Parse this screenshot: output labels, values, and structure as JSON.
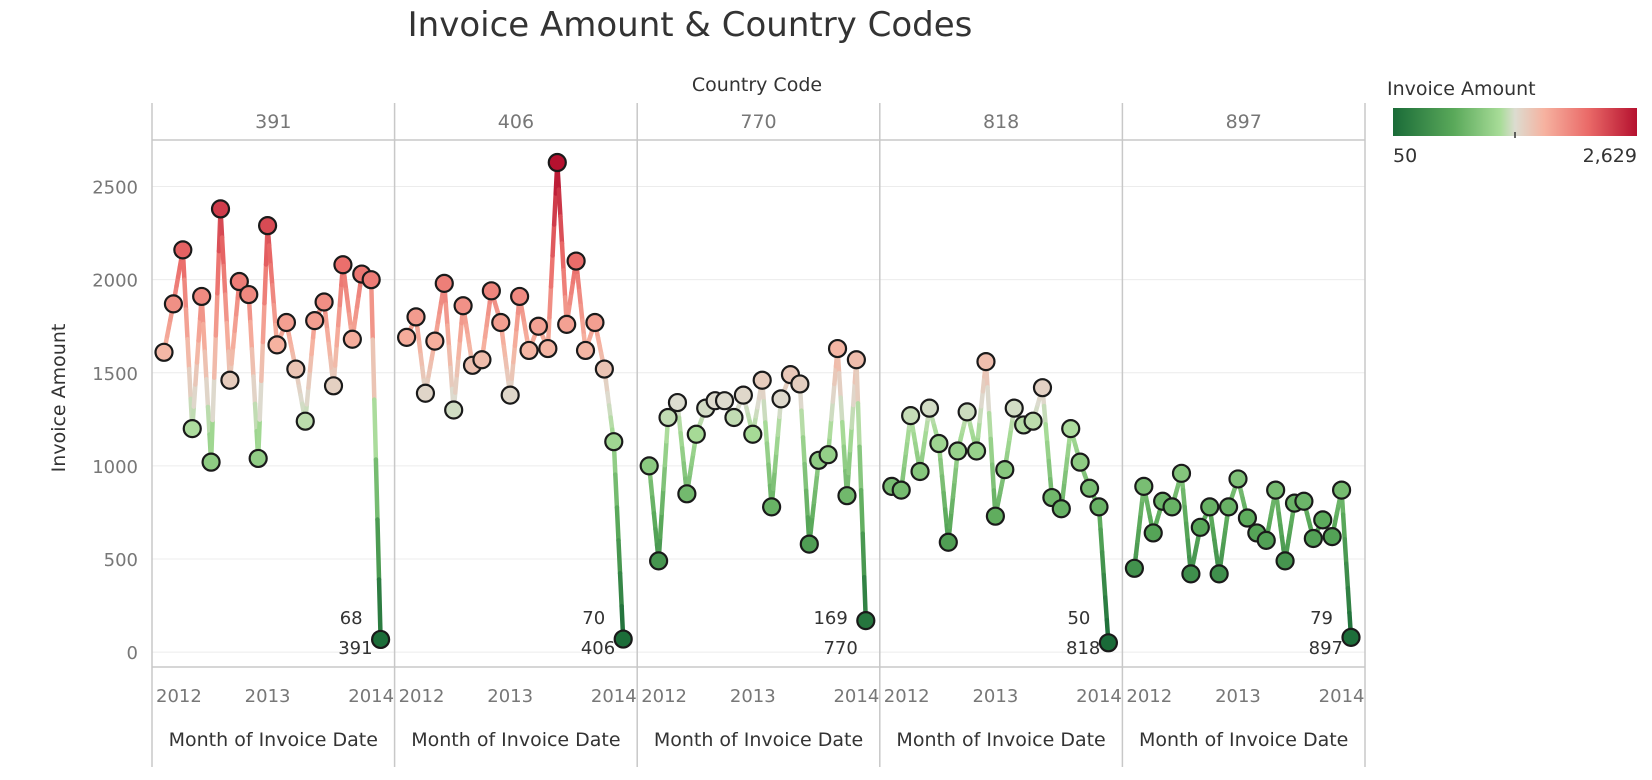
{
  "chart_data": {
    "type": "line",
    "title": "Invoice Amount & Country Codes",
    "facet_header": "Country Code",
    "ylabel": "Invoice Amount",
    "xlabel": "Month of Invoice Date",
    "ylim": [
      -80,
      2750
    ],
    "y_ticks": [
      0,
      500,
      1000,
      1500,
      2000,
      2500
    ],
    "x_ticks": [
      "2012",
      "2013",
      "2014"
    ],
    "grid": true,
    "legend": {
      "title": "Invoice Amount",
      "min": "50",
      "max": "2,629",
      "placement": "top-right"
    },
    "colors": {
      "low": "#1a6b38",
      "mid_low": "#9fd68f",
      "mid": "#dcdcd0",
      "mid_high": "#f4a08e",
      "high": "#b5112f"
    },
    "color_range": [
      50,
      2629
    ],
    "series": [
      {
        "name": "391",
        "end_label": "68",
        "end_code": "391",
        "values": [
          1610,
          1870,
          2160,
          1200,
          1910,
          1020,
          2380,
          1460,
          1990,
          1920,
          1040,
          2290,
          1650,
          1770,
          1520,
          1240,
          1780,
          1880,
          1430,
          2080,
          1680,
          2030,
          2000,
          68
        ]
      },
      {
        "name": "406",
        "end_label": "70",
        "end_code": "406",
        "values": [
          1690,
          1800,
          1390,
          1670,
          1980,
          1300,
          1860,
          1540,
          1570,
          1940,
          1770,
          1380,
          1910,
          1620,
          1750,
          1630,
          2629,
          1760,
          2100,
          1620,
          1770,
          1520,
          1130,
          70
        ]
      },
      {
        "name": "770",
        "end_label": "169",
        "end_code": "770",
        "values": [
          1000,
          490,
          1260,
          1340,
          850,
          1170,
          1310,
          1350,
          1350,
          1260,
          1380,
          1170,
          1460,
          780,
          1360,
          1490,
          1440,
          580,
          1030,
          1060,
          1630,
          840,
          1570,
          169
        ]
      },
      {
        "name": "818",
        "end_label": "50",
        "end_code": "818",
        "values": [
          890,
          870,
          1270,
          970,
          1310,
          1120,
          590,
          1080,
          1290,
          1080,
          1560,
          730,
          980,
          1310,
          1220,
          1240,
          1420,
          830,
          770,
          1200,
          1020,
          880,
          780,
          50
        ]
      },
      {
        "name": "897",
        "end_label": "79",
        "end_code": "897",
        "values": [
          450,
          890,
          640,
          810,
          780,
          960,
          420,
          670,
          780,
          420,
          780,
          930,
          720,
          640,
          600,
          870,
          490,
          800,
          810,
          610,
          710,
          620,
          870,
          79
        ]
      }
    ]
  }
}
